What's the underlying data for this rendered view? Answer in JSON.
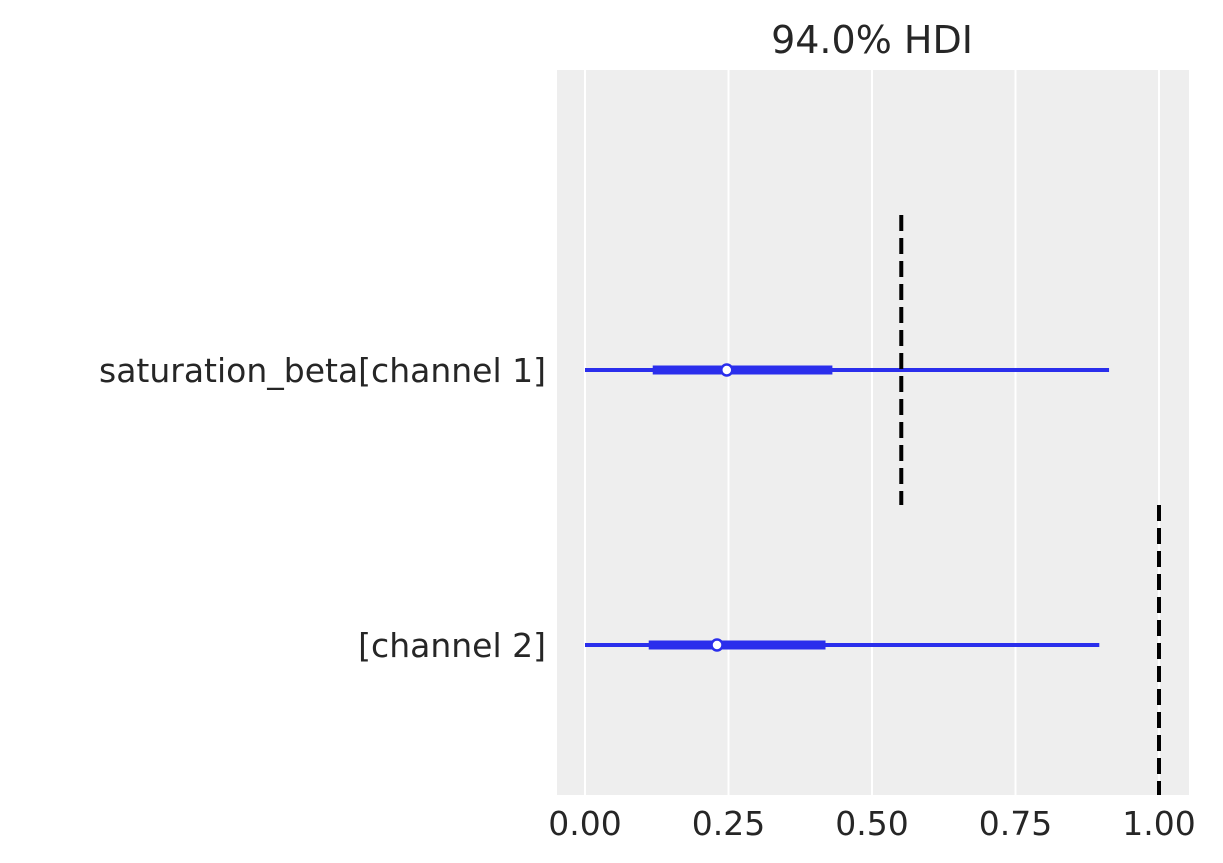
{
  "chart_data": {
    "type": "forest",
    "title": "94.0% HDI",
    "xlim": [
      -0.05,
      1.053
    ],
    "xticks": [
      0.0,
      0.25,
      0.5,
      0.75,
      1.0
    ],
    "xtick_labels": [
      "0.00",
      "0.25",
      "0.50",
      "0.75",
      "1.00"
    ],
    "grid": true,
    "background": "#eeeeee",
    "series_color": "#2a2eec",
    "ref_line_color": "#000000",
    "rows": [
      {
        "label": "saturation_beta[channel 1]",
        "hdi_94": [
          0.0,
          0.913
        ],
        "hdi_50": [
          0.118,
          0.431
        ],
        "point": 0.247,
        "ref_line": 0.551
      },
      {
        "label": "[channel 2]",
        "hdi_94": [
          0.0,
          0.896
        ],
        "hdi_50": [
          0.111,
          0.419
        ],
        "point": 0.23,
        "ref_line": 1.0
      }
    ]
  }
}
